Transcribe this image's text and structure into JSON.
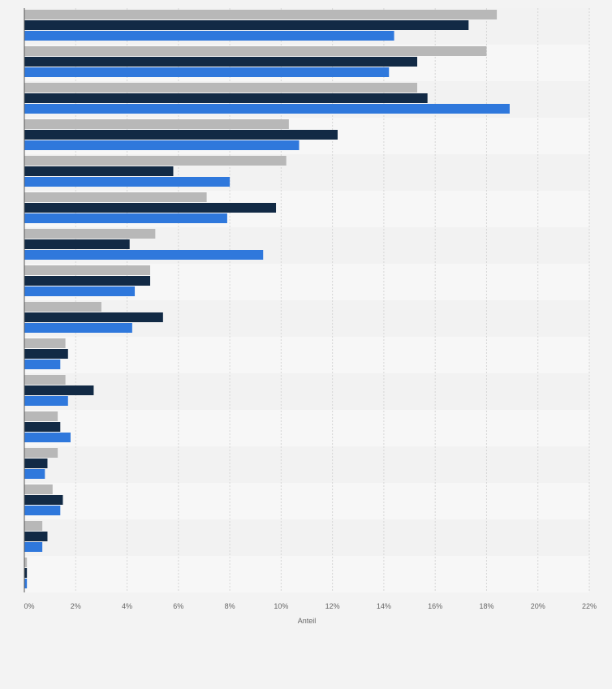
{
  "chart_data": {
    "type": "bar",
    "orientation": "horizontal",
    "xlabel": "Anteil",
    "xlim": [
      0,
      22
    ],
    "tick_values": [
      0,
      2,
      4,
      6,
      8,
      10,
      12,
      14,
      16,
      18,
      20,
      22
    ],
    "tick_labels": [
      "0%",
      "2%",
      "4%",
      "6%",
      "8%",
      "10%",
      "12%",
      "14%",
      "16%",
      "18%",
      "20%",
      "22%"
    ],
    "grid": true,
    "legend": "none",
    "category_count": 16,
    "series": [
      {
        "color": "#b8b8b8",
        "values": [
          18.4,
          18.0,
          15.3,
          10.3,
          10.2,
          7.1,
          5.1,
          4.9,
          3.0,
          1.6,
          1.6,
          1.3,
          1.3,
          1.1,
          0.7,
          0.1
        ]
      },
      {
        "color": "#122a45",
        "values": [
          17.3,
          15.3,
          15.7,
          12.2,
          5.8,
          9.8,
          4.1,
          4.9,
          5.4,
          1.7,
          2.7,
          1.4,
          0.9,
          1.5,
          0.9,
          0.1
        ]
      },
      {
        "color": "#2f78dc",
        "values": [
          14.4,
          14.2,
          18.9,
          10.7,
          8.0,
          7.9,
          9.3,
          4.3,
          4.2,
          1.4,
          1.7,
          1.8,
          0.8,
          1.4,
          0.7,
          0.1
        ]
      }
    ]
  }
}
